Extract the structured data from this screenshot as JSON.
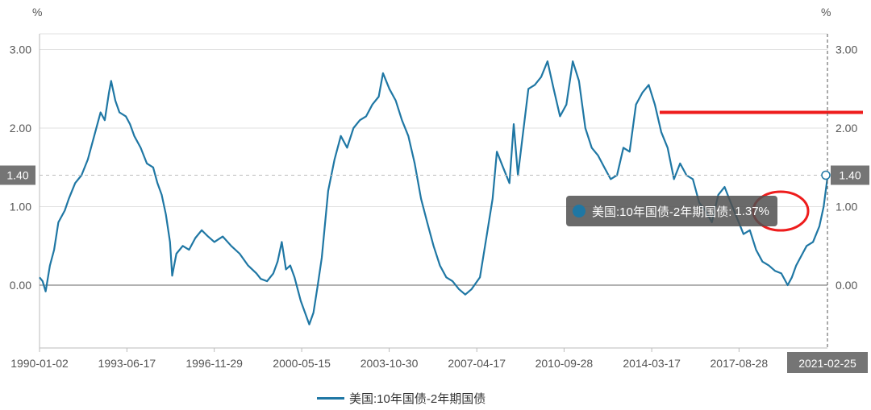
{
  "chart_data": {
    "type": "line",
    "y_unit_left": "%",
    "y_unit_right": "%",
    "ylim": [
      -0.8,
      3.2
    ],
    "y_ticks": [
      "0.00",
      "1.00",
      "2.00",
      "3.00"
    ],
    "y_tick_values": [
      0,
      1,
      2,
      3
    ],
    "x_ticks": [
      "1990-01-02",
      "1993-06-17",
      "1996-11-29",
      "2000-05-15",
      "2003-10-30",
      "2007-04-17",
      "2010-09-28",
      "2014-03-17",
      "2017-08-28",
      "2021-02-25"
    ],
    "grid": true,
    "legend_position": "bottom",
    "series": [
      {
        "name": "美国:10年国债-2年期国债",
        "color": "#1f77a4",
        "points": [
          [
            "1990-01-02",
            0.1
          ],
          [
            "1990-02-15",
            0.05
          ],
          [
            "1990-04-01",
            -0.08
          ],
          [
            "1990-06-01",
            0.25
          ],
          [
            "1990-08-01",
            0.45
          ],
          [
            "1990-10-01",
            0.8
          ],
          [
            "1991-01-01",
            0.95
          ],
          [
            "1991-03-01",
            1.1
          ],
          [
            "1991-06-01",
            1.3
          ],
          [
            "1991-09-01",
            1.4
          ],
          [
            "1991-12-01",
            1.6
          ],
          [
            "1992-03-01",
            1.9
          ],
          [
            "1992-06-01",
            2.2
          ],
          [
            "1992-08-01",
            2.1
          ],
          [
            "1992-10-01",
            2.45
          ],
          [
            "1992-11-01",
            2.6
          ],
          [
            "1993-01-01",
            2.35
          ],
          [
            "1993-03-01",
            2.2
          ],
          [
            "1993-06-01",
            2.15
          ],
          [
            "1993-08-01",
            2.05
          ],
          [
            "1993-10-01",
            1.9
          ],
          [
            "1994-01-01",
            1.75
          ],
          [
            "1994-04-01",
            1.55
          ],
          [
            "1994-07-01",
            1.5
          ],
          [
            "1994-09-01",
            1.3
          ],
          [
            "1994-11-01",
            1.15
          ],
          [
            "1995-01-01",
            0.9
          ],
          [
            "1995-03-01",
            0.55
          ],
          [
            "1995-04-01",
            0.12
          ],
          [
            "1995-06-01",
            0.4
          ],
          [
            "1995-09-01",
            0.5
          ],
          [
            "1995-12-01",
            0.45
          ],
          [
            "1996-03-01",
            0.6
          ],
          [
            "1996-06-01",
            0.7
          ],
          [
            "1996-09-01",
            0.62
          ],
          [
            "1996-12-01",
            0.55
          ],
          [
            "1997-04-01",
            0.62
          ],
          [
            "1997-08-01",
            0.5
          ],
          [
            "1997-12-01",
            0.4
          ],
          [
            "1998-04-01",
            0.25
          ],
          [
            "1998-08-01",
            0.15
          ],
          [
            "1998-10-01",
            0.08
          ],
          [
            "1999-01-01",
            0.05
          ],
          [
            "1999-04-01",
            0.15
          ],
          [
            "1999-06-01",
            0.3
          ],
          [
            "1999-08-01",
            0.55
          ],
          [
            "1999-10-01",
            0.2
          ],
          [
            "1999-12-01",
            0.25
          ],
          [
            "2000-02-01",
            0.1
          ],
          [
            "2000-05-01",
            -0.2
          ],
          [
            "2000-07-01",
            -0.35
          ],
          [
            "2000-09-01",
            -0.5
          ],
          [
            "2000-11-01",
            -0.35
          ],
          [
            "2001-01-01",
            0.0
          ],
          [
            "2001-03-01",
            0.35
          ],
          [
            "2001-06-01",
            1.2
          ],
          [
            "2001-09-01",
            1.6
          ],
          [
            "2001-12-01",
            1.9
          ],
          [
            "2002-03-01",
            1.75
          ],
          [
            "2002-06-01",
            2.0
          ],
          [
            "2002-09-01",
            2.1
          ],
          [
            "2002-12-01",
            2.15
          ],
          [
            "2003-03-01",
            2.3
          ],
          [
            "2003-06-01",
            2.4
          ],
          [
            "2003-08-01",
            2.7
          ],
          [
            "2003-11-01",
            2.5
          ],
          [
            "2004-02-01",
            2.35
          ],
          [
            "2004-05-01",
            2.1
          ],
          [
            "2004-08-01",
            1.9
          ],
          [
            "2004-11-01",
            1.55
          ],
          [
            "2005-02-01",
            1.1
          ],
          [
            "2005-05-01",
            0.8
          ],
          [
            "2005-08-01",
            0.5
          ],
          [
            "2005-11-01",
            0.25
          ],
          [
            "2006-02-01",
            0.1
          ],
          [
            "2006-05-01",
            0.05
          ],
          [
            "2006-08-01",
            -0.05
          ],
          [
            "2006-11-01",
            -0.12
          ],
          [
            "2007-02-01",
            -0.05
          ],
          [
            "2007-06-01",
            0.1
          ],
          [
            "2007-09-01",
            0.6
          ],
          [
            "2007-12-01",
            1.1
          ],
          [
            "2008-02-01",
            1.7
          ],
          [
            "2008-05-01",
            1.5
          ],
          [
            "2008-08-01",
            1.3
          ],
          [
            "2008-10-01",
            2.05
          ],
          [
            "2008-12-01",
            1.4
          ],
          [
            "2009-02-01",
            1.85
          ],
          [
            "2009-05-01",
            2.5
          ],
          [
            "2009-08-01",
            2.55
          ],
          [
            "2009-11-01",
            2.65
          ],
          [
            "2010-02-01",
            2.85
          ],
          [
            "2010-05-01",
            2.5
          ],
          [
            "2010-08-01",
            2.15
          ],
          [
            "2010-11-01",
            2.3
          ],
          [
            "2011-02-01",
            2.85
          ],
          [
            "2011-05-01",
            2.6
          ],
          [
            "2011-08-01",
            2.0
          ],
          [
            "2011-11-01",
            1.75
          ],
          [
            "2012-02-01",
            1.65
          ],
          [
            "2012-05-01",
            1.5
          ],
          [
            "2012-08-01",
            1.35
          ],
          [
            "2012-11-01",
            1.4
          ],
          [
            "2013-02-01",
            1.75
          ],
          [
            "2013-05-01",
            1.7
          ],
          [
            "2013-08-01",
            2.3
          ],
          [
            "2013-11-01",
            2.45
          ],
          [
            "2014-02-01",
            2.55
          ],
          [
            "2014-05-01",
            2.3
          ],
          [
            "2014-08-01",
            1.95
          ],
          [
            "2014-11-01",
            1.75
          ],
          [
            "2015-02-01",
            1.35
          ],
          [
            "2015-05-01",
            1.55
          ],
          [
            "2015-08-01",
            1.4
          ],
          [
            "2015-11-01",
            1.35
          ],
          [
            "2016-02-01",
            1.05
          ],
          [
            "2016-05-01",
            0.95
          ],
          [
            "2016-08-01",
            0.8
          ],
          [
            "2016-11-01",
            1.15
          ],
          [
            "2017-02-01",
            1.25
          ],
          [
            "2017-05-01",
            1.05
          ],
          [
            "2017-08-01",
            0.85
          ],
          [
            "2017-11-01",
            0.65
          ],
          [
            "2018-02-01",
            0.7
          ],
          [
            "2018-05-01",
            0.45
          ],
          [
            "2018-08-01",
            0.3
          ],
          [
            "2018-11-01",
            0.25
          ],
          [
            "2019-02-01",
            0.18
          ],
          [
            "2019-05-01",
            0.15
          ],
          [
            "2019-08-01",
            0.0
          ],
          [
            "2019-10-01",
            0.1
          ],
          [
            "2019-12-01",
            0.25
          ],
          [
            "2020-03-01",
            0.4
          ],
          [
            "2020-05-01",
            0.5
          ],
          [
            "2020-08-01",
            0.55
          ],
          [
            "2020-11-01",
            0.75
          ],
          [
            "2021-01-01",
            1.0
          ],
          [
            "2021-02-25",
            1.37
          ]
        ]
      }
    ],
    "y_marker": {
      "label": "1.40",
      "value": 1.4
    },
    "x_marker": {
      "label": "2021-02-25"
    },
    "annotation_line_value": 2.2,
    "annotation_line_color": "#ee1c1c"
  },
  "tooltip": {
    "series_label": "美国:10年国债-2年期国债:",
    "value": "1.37%"
  },
  "legend": {
    "label": "美国:10年国债-2年期国债"
  }
}
